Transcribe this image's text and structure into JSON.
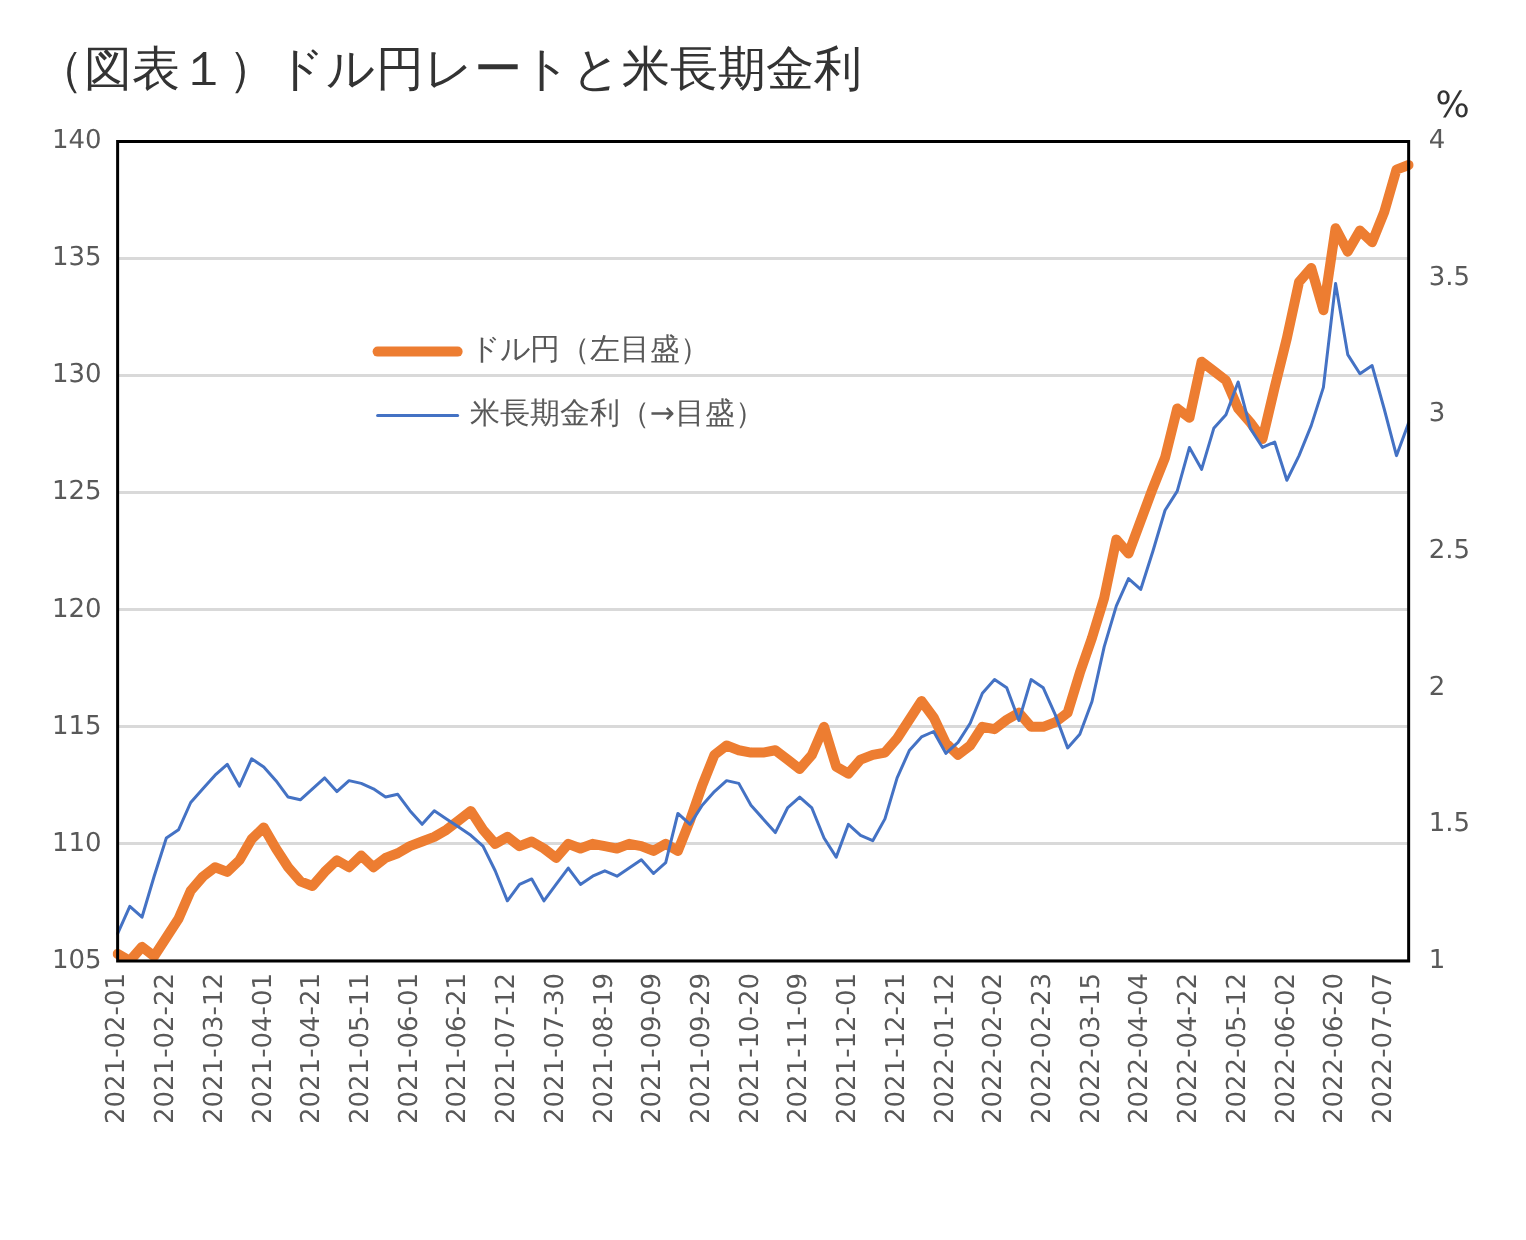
{
  "chart_data": {
    "type": "line",
    "title": "（図表１）ドル円レートと米長期金利",
    "y2label": "%",
    "categories": [
      "2021-02-01",
      null,
      null,
      null,
      "2021-02-22",
      null,
      null,
      null,
      "2021-03-12",
      null,
      null,
      null,
      "2021-04-01",
      null,
      null,
      null,
      "2021-04-21",
      null,
      null,
      null,
      "2021-05-11",
      null,
      null,
      null,
      "2021-06-01",
      null,
      null,
      null,
      "2021-06-21",
      null,
      null,
      null,
      "2021-07-12",
      null,
      null,
      null,
      "2021-07-30",
      null,
      null,
      null,
      "2021-08-19",
      null,
      null,
      null,
      "2021-09-09",
      null,
      null,
      null,
      "2021-09-29",
      null,
      null,
      null,
      "2021-10-20",
      null,
      null,
      null,
      "2021-11-09",
      null,
      null,
      null,
      "2021-12-01",
      null,
      null,
      null,
      "2021-12-21",
      null,
      null,
      null,
      "2022-01-12",
      null,
      null,
      null,
      "2022-02-02",
      null,
      null,
      null,
      "2022-02-23",
      null,
      null,
      null,
      "2022-03-15",
      null,
      null,
      null,
      "2022-04-04",
      null,
      null,
      null,
      "2022-04-22",
      null,
      null,
      null,
      "2022-05-12",
      null,
      null,
      null,
      "2022-06-02",
      null,
      null,
      null,
      "2022-06-20",
      null,
      null,
      null,
      "2022-07-07",
      null,
      null
    ],
    "series": [
      {
        "name": "ドル円（左目盛）",
        "color": "#ed7d31",
        "values": [
          105.3,
          105.0,
          105.6,
          105.2,
          106.0,
          106.8,
          108.0,
          108.6,
          109.0,
          108.8,
          109.3,
          110.2,
          110.7,
          109.8,
          109.0,
          108.4,
          108.2,
          108.8,
          109.3,
          109.0,
          109.5,
          109.0,
          109.4,
          109.6,
          109.9,
          110.1,
          110.3,
          110.6,
          111.0,
          111.4,
          110.6,
          110.0,
          110.3,
          109.9,
          110.1,
          109.8,
          109.4,
          110.0,
          109.8,
          110.0,
          109.9,
          109.8,
          110.0,
          109.9,
          109.7,
          110.0,
          109.7,
          111.0,
          112.5,
          113.8,
          114.2,
          114.0,
          113.9,
          113.9,
          114.0,
          113.6,
          113.2,
          113.8,
          115.0,
          113.3,
          113.0,
          113.6,
          113.8,
          113.9,
          114.5,
          115.3,
          116.1,
          115.4,
          114.3,
          113.8,
          114.2,
          115.0,
          114.9,
          115.3,
          115.6,
          115.0,
          115.0,
          115.2,
          115.6,
          117.3,
          118.8,
          120.5,
          123.0,
          122.4,
          123.8,
          125.2,
          126.5,
          128.6,
          128.2,
          130.6,
          130.2,
          129.8,
          128.6,
          128.0,
          127.3,
          129.5,
          131.6,
          134.0,
          134.6,
          132.8,
          136.3,
          135.3,
          136.2,
          135.7,
          137.0,
          138.8,
          139.0
        ]
      },
      {
        "name": "米長期金利（→目盛）",
        "color": "#4472c4",
        "axis": "y2",
        "values": [
          1.1,
          1.2,
          1.16,
          1.31,
          1.45,
          1.48,
          1.58,
          1.63,
          1.68,
          1.72,
          1.64,
          1.74,
          1.71,
          1.66,
          1.6,
          1.59,
          1.63,
          1.67,
          1.62,
          1.66,
          1.65,
          1.63,
          1.6,
          1.61,
          1.55,
          1.5,
          1.55,
          1.52,
          1.49,
          1.46,
          1.42,
          1.33,
          1.22,
          1.28,
          1.3,
          1.22,
          1.28,
          1.34,
          1.28,
          1.31,
          1.33,
          1.31,
          1.34,
          1.37,
          1.32,
          1.36,
          1.54,
          1.5,
          1.57,
          1.62,
          1.66,
          1.65,
          1.57,
          1.52,
          1.47,
          1.56,
          1.6,
          1.56,
          1.45,
          1.38,
          1.5,
          1.46,
          1.44,
          1.52,
          1.67,
          1.77,
          1.82,
          1.84,
          1.76,
          1.8,
          1.87,
          1.98,
          2.03,
          2.0,
          1.88,
          2.03,
          2.0,
          1.9,
          1.78,
          1.83,
          1.95,
          2.15,
          2.3,
          2.4,
          2.36,
          2.5,
          2.65,
          2.72,
          2.88,
          2.8,
          2.95,
          3.0,
          3.12,
          2.95,
          2.88,
          2.9,
          2.76,
          2.85,
          2.96,
          3.1,
          3.48,
          3.22,
          3.15,
          3.18,
          3.02,
          2.85,
          2.97
        ]
      }
    ],
    "ylim": [
      105,
      140
    ],
    "yticks": [
      105,
      110,
      115,
      120,
      125,
      130,
      135,
      140
    ],
    "y2lim": [
      1,
      4
    ],
    "y2ticks": [
      1,
      1.5,
      2,
      2.5,
      3,
      3.5,
      4
    ],
    "grid": "y",
    "legend": "top left",
    "marker": "none",
    "line_style": "solid"
  }
}
